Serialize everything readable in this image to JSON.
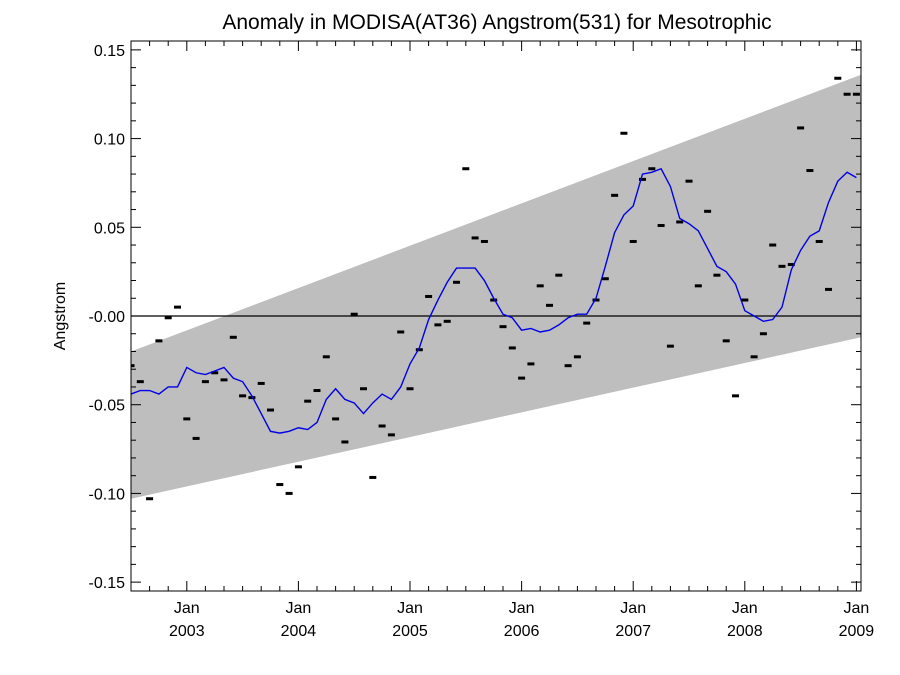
{
  "chart_data": {
    "type": "line",
    "title": "Anomaly in MODISA(AT36) Angstrom(531) for Mesotrophic",
    "xlabel": "",
    "ylabel": "Angstrom",
    "xlim": [
      "2002-07-01",
      "2009-01-16"
    ],
    "ylim": [
      -0.155,
      0.155
    ],
    "y_ticks": [
      0.15,
      0.1,
      0.05,
      0.0,
      -0.05,
      -0.1,
      -0.15
    ],
    "y_tick_labels": [
      "0.15",
      "0.10",
      "0.05",
      "-0.00",
      "-0.05",
      "-0.10",
      "-0.15"
    ],
    "x_ticks": [
      {
        "date": "2003-01-01",
        "month": "Jan",
        "year": "2003"
      },
      {
        "date": "2004-01-01",
        "month": "Jan",
        "year": "2004"
      },
      {
        "date": "2005-01-01",
        "month": "Jan",
        "year": "2005"
      },
      {
        "date": "2006-01-01",
        "month": "Jan",
        "year": "2006"
      },
      {
        "date": "2007-01-01",
        "month": "Jan",
        "year": "2007"
      },
      {
        "date": "2008-01-01",
        "month": "Jan",
        "year": "2008"
      },
      {
        "date": "2009-01-01",
        "month": "Jan",
        "year": "2009"
      }
    ],
    "reference_line": 0.0,
    "grid": false,
    "band": {
      "lower": [
        [
          "2002-07-01",
          -0.103
        ],
        [
          "2009-01-16",
          -0.012
        ]
      ],
      "upper": [
        [
          "2002-07-01",
          -0.02
        ],
        [
          "2009-01-16",
          0.136
        ]
      ],
      "color": "#bebebe"
    },
    "series": [
      {
        "kind": "points",
        "marker": "dash-errorbar",
        "color": "#000000",
        "x": [
          "2002-07",
          "2002-08",
          "2002-09",
          "2002-10",
          "2002-11",
          "2002-12",
          "2003-01",
          "2003-02",
          "2003-03",
          "2003-04",
          "2003-05",
          "2003-06",
          "2003-07",
          "2003-08",
          "2003-09",
          "2003-10",
          "2003-11",
          "2003-12",
          "2004-01",
          "2004-02",
          "2004-03",
          "2004-04",
          "2004-05",
          "2004-06",
          "2004-07",
          "2004-08",
          "2004-09",
          "2004-10",
          "2004-11",
          "2004-12",
          "2005-01",
          "2005-02",
          "2005-03",
          "2005-04",
          "2005-05",
          "2005-06",
          "2005-07",
          "2005-08",
          "2005-09",
          "2005-10",
          "2005-11",
          "2005-12",
          "2006-01",
          "2006-02",
          "2006-03",
          "2006-04",
          "2006-05",
          "2006-06",
          "2006-07",
          "2006-08",
          "2006-09",
          "2006-10",
          "2006-11",
          "2006-12",
          "2007-01",
          "2007-02",
          "2007-03",
          "2007-04",
          "2007-05",
          "2007-06",
          "2007-07",
          "2007-08",
          "2007-09",
          "2007-10",
          "2007-11",
          "2007-12",
          "2008-01",
          "2008-02",
          "2008-03",
          "2008-04",
          "2008-05",
          "2008-06",
          "2008-07",
          "2008-08",
          "2008-09",
          "2008-10",
          "2008-11",
          "2008-12",
          "2009-01"
        ],
        "y": [
          -0.028,
          -0.037,
          -0.103,
          -0.014,
          -0.001,
          0.005,
          -0.058,
          -0.069,
          -0.037,
          -0.032,
          -0.036,
          -0.012,
          -0.045,
          -0.046,
          -0.038,
          -0.053,
          -0.095,
          -0.1,
          -0.085,
          -0.048,
          -0.042,
          -0.023,
          -0.058,
          -0.071,
          0.001,
          -0.041,
          -0.091,
          -0.062,
          -0.067,
          -0.009,
          -0.041,
          -0.019,
          0.011,
          -0.005,
          -0.003,
          0.019,
          0.083,
          0.044,
          0.042,
          0.009,
          -0.006,
          -0.018,
          -0.035,
          -0.027,
          0.017,
          0.006,
          0.023,
          -0.028,
          -0.023,
          -0.004,
          0.009,
          0.021,
          0.068,
          0.103,
          0.042,
          0.077,
          0.083,
          0.051,
          -0.017,
          0.053,
          0.076,
          0.017,
          0.059,
          0.023,
          -0.014,
          -0.045,
          0.009,
          -0.023,
          -0.01,
          0.04,
          0.028,
          0.029,
          0.106,
          0.082,
          0.042,
          0.015,
          0.134,
          0.125,
          0.125
        ]
      },
      {
        "kind": "line",
        "color": "#0000e6",
        "x": [
          "2002-07",
          "2002-08",
          "2002-09",
          "2002-10",
          "2002-11",
          "2002-12",
          "2003-01",
          "2003-02",
          "2003-03",
          "2003-04",
          "2003-05",
          "2003-06",
          "2003-07",
          "2003-08",
          "2003-09",
          "2003-10",
          "2003-11",
          "2003-12",
          "2004-01",
          "2004-02",
          "2004-03",
          "2004-04",
          "2004-05",
          "2004-06",
          "2004-07",
          "2004-08",
          "2004-09",
          "2004-10",
          "2004-11",
          "2004-12",
          "2005-01",
          "2005-02",
          "2005-03",
          "2005-04",
          "2005-05",
          "2005-06",
          "2005-07",
          "2005-08",
          "2005-09",
          "2005-10",
          "2005-11",
          "2005-12",
          "2006-01",
          "2006-02",
          "2006-03",
          "2006-04",
          "2006-05",
          "2006-06",
          "2006-07",
          "2006-08",
          "2006-09",
          "2006-10",
          "2006-11",
          "2006-12",
          "2007-01",
          "2007-02",
          "2007-03",
          "2007-04",
          "2007-05",
          "2007-06",
          "2007-07",
          "2007-08",
          "2007-09",
          "2007-10",
          "2007-11",
          "2007-12",
          "2008-01",
          "2008-02",
          "2008-03",
          "2008-04",
          "2008-05",
          "2008-06",
          "2008-07",
          "2008-08",
          "2008-09",
          "2008-10",
          "2008-11",
          "2008-12",
          "2009-01"
        ],
        "y": [
          -0.044,
          -0.042,
          -0.042,
          -0.044,
          -0.04,
          -0.04,
          -0.029,
          -0.032,
          -0.033,
          -0.031,
          -0.029,
          -0.035,
          -0.037,
          -0.045,
          -0.055,
          -0.065,
          -0.066,
          -0.065,
          -0.063,
          -0.064,
          -0.06,
          -0.047,
          -0.041,
          -0.047,
          -0.049,
          -0.055,
          -0.049,
          -0.044,
          -0.047,
          -0.04,
          -0.027,
          -0.018,
          -0.002,
          0.009,
          0.019,
          0.027,
          0.027,
          0.027,
          0.02,
          0.01,
          0.001,
          -0.001,
          -0.008,
          -0.007,
          -0.009,
          -0.008,
          -0.005,
          -0.001,
          0.001,
          0.001,
          0.01,
          0.028,
          0.047,
          0.057,
          0.062,
          0.08,
          0.081,
          0.083,
          0.073,
          0.055,
          0.052,
          0.048,
          0.038,
          0.028,
          0.025,
          0.018,
          0.003,
          0.0,
          -0.003,
          -0.002,
          0.005,
          0.026,
          0.037,
          0.045,
          0.048,
          0.064,
          0.076,
          0.081,
          0.078
        ]
      }
    ]
  }
}
